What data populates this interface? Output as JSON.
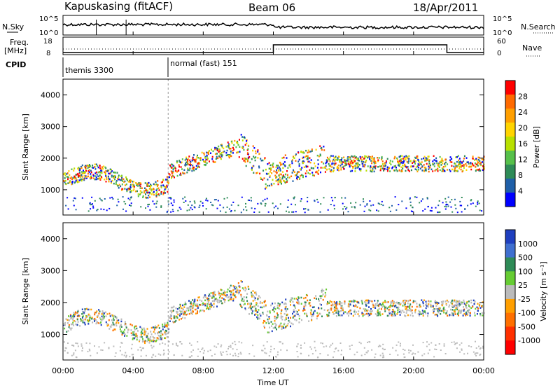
{
  "header": {
    "station": "Kapuskasing (fitACF)",
    "beam": "Beam 06",
    "date": "18/Apr/2011"
  },
  "top_panel": {
    "left_label_top": "N.Sky",
    "left_label_freq": "Freq.",
    "left_label_mhz": "[MHz]",
    "left_label_cpid": "CPID",
    "right_label_top": "N.Search",
    "right_label_nave": "Nave",
    "nsky_ticks": [
      "10^5",
      "10^0"
    ],
    "nsearch_ticks": [
      "10^5",
      "10^0"
    ],
    "freq_ticks": [
      "18",
      "8"
    ],
    "nave_ticks": [
      "60",
      "0"
    ],
    "cpid_segments": [
      {
        "label": "themis 3300",
        "start_hour": 0
      },
      {
        "label": "normal (fast) 151",
        "start_hour": 6
      }
    ]
  },
  "chart_data": [
    {
      "type": "heatmap",
      "name": "power",
      "ylabel": "Slant Range [km]",
      "xlabel": "",
      "colorbar_label": "Power [dB]",
      "colorbar_ticks": [
        "28",
        "24",
        "20",
        "16",
        "12",
        "8",
        "4"
      ],
      "colorbar_colors": [
        "#ff0000",
        "#ff6a00",
        "#ff9f00",
        "#ffd400",
        "#b8e000",
        "#56c04a",
        "#2e8b57",
        "#1f5fa8",
        "#0000ff"
      ],
      "y_ticks": [
        "4000",
        "3000",
        "2000",
        "1000"
      ],
      "ylim": [
        200,
        4500
      ],
      "xlim_hours": [
        0,
        24
      ]
    },
    {
      "type": "heatmap",
      "name": "velocity",
      "ylabel": "Slant Range [km]",
      "xlabel": "Time UT",
      "colorbar_label": "Velocity [m s⁻¹]",
      "colorbar_ticks": [
        "1000",
        "500",
        "100",
        "25",
        "-25",
        "-100",
        "-500",
        "-1000"
      ],
      "colorbar_colors": [
        "#1f3fbf",
        "#3f6fcf",
        "#2e8b57",
        "#66cc33",
        "#bbbbbb",
        "#ff9f00",
        "#ff7000",
        "#ff3000",
        "#ff0000"
      ],
      "y_ticks": [
        "4000",
        "3000",
        "2000",
        "1000"
      ],
      "x_ticks": [
        "00:00",
        "04:00",
        "08:00",
        "12:00",
        "16:00",
        "20:00",
        "00:00"
      ],
      "ylim": [
        200,
        4500
      ],
      "xlim_hours": [
        0,
        24
      ]
    }
  ]
}
